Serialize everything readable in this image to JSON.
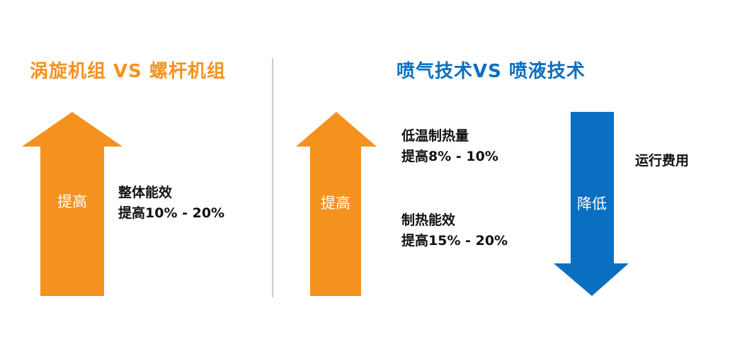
{
  "colors": {
    "orange": "#f5921f",
    "blue": "#0b6fc1",
    "divider": "#cccccc",
    "text": "#111111"
  },
  "left": {
    "title": "涡旋机组 VS 螺杆机组",
    "arrow": {
      "direction": "up",
      "label": "提高"
    },
    "note": {
      "line1": "整体能效",
      "line2": "提高10% - 20%"
    }
  },
  "right": {
    "title": "喷气技术VS 喷液技术",
    "up_arrow": {
      "direction": "up",
      "label": "提高"
    },
    "note1": {
      "line1": "低温制热量",
      "line2": "提高8% - 10%"
    },
    "note2": {
      "line1": "制热能效",
      "line2": "提高15% - 20%"
    },
    "down_arrow": {
      "direction": "down",
      "label": "降低"
    },
    "note3": "运行费用"
  }
}
